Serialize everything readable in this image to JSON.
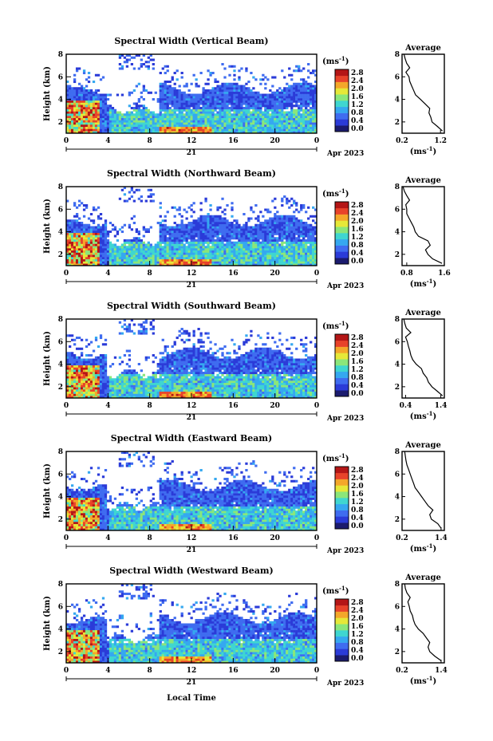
{
  "figure": {
    "xlabel": "Local Time",
    "date_label": "Apr 2023",
    "day_label": "21",
    "colorbar_unit": "(ms",
    "unit_exp": "-1",
    "colorbar_ticks": [
      "0.0",
      "0.4",
      "0.8",
      "1.2",
      "1.6",
      "2.0",
      "2.4",
      "2.8"
    ],
    "colors": {
      "colormap": [
        "#1b1b6e",
        "#2b3bd8",
        "#3f6cf0",
        "#35a8f0",
        "#3fd6d0",
        "#8be67a",
        "#e6e838",
        "#f4a72a",
        "#e8432a",
        "#b41616"
      ]
    }
  },
  "chart_data": [
    {
      "type": "heatmap",
      "title": "Spectral Width (Vertical Beam)",
      "ylabel": "Height (km)",
      "xlim": [
        0,
        24
      ],
      "ylim": [
        1.0,
        8.0
      ],
      "xticks": [
        "0",
        "4",
        "8",
        "12",
        "16",
        "20",
        "0"
      ],
      "yticks": [
        "2",
        "4",
        "6",
        "8"
      ],
      "zlim": [
        0.0,
        2.8
      ],
      "profile": {
        "title": "Average",
        "xlabel": "(ms",
        "xticks": [
          "0.2",
          "1.2"
        ],
        "xlim": [
          0.2,
          1.3
        ],
        "heights": [
          1.2,
          1.6,
          2.0,
          2.4,
          2.8,
          3.2,
          3.6,
          4.0,
          4.4,
          4.8,
          5.2,
          5.6,
          6.0,
          6.4,
          6.8,
          7.2,
          7.6,
          8.0
        ],
        "values": [
          1.25,
          1.12,
          0.98,
          0.95,
          0.9,
          0.92,
          0.8,
          0.68,
          0.55,
          0.5,
          0.45,
          0.4,
          0.38,
          0.3,
          0.4,
          0.32,
          0.28,
          0.25
        ]
      }
    },
    {
      "type": "heatmap",
      "title": "Spectral Width (Northward Beam)",
      "ylabel": "Height (km)",
      "xlim": [
        0,
        24
      ],
      "ylim": [
        1.0,
        8.0
      ],
      "xticks": [
        "0",
        "4",
        "8",
        "12",
        "16",
        "20",
        "0"
      ],
      "yticks": [
        "2",
        "4",
        "6",
        "8"
      ],
      "zlim": [
        0.0,
        2.8
      ],
      "profile": {
        "title": "Average",
        "xlabel": "(ms",
        "xticks": [
          "0.8",
          "1.6"
        ],
        "xlim": [
          0.7,
          1.6
        ],
        "heights": [
          1.2,
          1.6,
          2.0,
          2.4,
          2.8,
          3.2,
          3.6,
          4.0,
          4.4,
          4.8,
          5.2,
          5.6,
          6.0,
          6.4,
          6.8,
          7.2,
          7.6,
          8.0
        ],
        "values": [
          1.55,
          1.35,
          1.25,
          1.2,
          1.3,
          1.25,
          1.05,
          0.98,
          0.95,
          0.9,
          0.85,
          0.8,
          0.8,
          0.78,
          0.86,
          0.8,
          0.75,
          0.72
        ]
      }
    },
    {
      "type": "heatmap",
      "title": "Spectral Width (Southward Beam)",
      "ylabel": "Height (km)",
      "xlim": [
        0,
        24
      ],
      "ylim": [
        1.0,
        8.0
      ],
      "xticks": [
        "0",
        "4",
        "8",
        "12",
        "16",
        "20",
        "0"
      ],
      "yticks": [
        "2",
        "4",
        "6",
        "8"
      ],
      "zlim": [
        0.0,
        2.8
      ],
      "profile": {
        "title": "Average",
        "xlabel": "(ms",
        "xticks": [
          "0.4",
          "1.4"
        ],
        "xlim": [
          0.3,
          1.5
        ],
        "heights": [
          1.2,
          1.6,
          2.0,
          2.4,
          2.8,
          3.2,
          3.6,
          4.0,
          4.4,
          4.8,
          5.2,
          5.6,
          6.0,
          6.4,
          6.8,
          7.2,
          7.6,
          8.0
        ],
        "values": [
          1.45,
          1.3,
          1.15,
          1.05,
          1.0,
          0.9,
          0.85,
          0.7,
          0.6,
          0.55,
          0.52,
          0.48,
          0.45,
          0.4,
          0.55,
          0.42,
          0.38,
          0.35
        ]
      }
    },
    {
      "type": "heatmap",
      "title": "Spectral Width (Eastward Beam)",
      "ylabel": "Height (km)",
      "xlim": [
        0,
        24
      ],
      "ylim": [
        1.0,
        8.0
      ],
      "xticks": [
        "0",
        "4",
        "8",
        "12",
        "16",
        "20",
        "0"
      ],
      "yticks": [
        "2",
        "4",
        "6",
        "8"
      ],
      "zlim": [
        0.0,
        2.8
      ],
      "profile": {
        "title": "Average",
        "xlabel": "(ms",
        "xticks": [
          "0.2",
          "1.4"
        ],
        "xlim": [
          0.2,
          1.5
        ],
        "heights": [
          1.2,
          1.6,
          2.0,
          2.4,
          2.8,
          3.2,
          3.6,
          4.0,
          4.4,
          4.8,
          5.2,
          5.6,
          6.0,
          6.4,
          6.8,
          7.2,
          7.6,
          8.0
        ],
        "values": [
          1.4,
          1.3,
          1.1,
          1.05,
          1.15,
          1.0,
          0.9,
          0.8,
          0.7,
          0.6,
          0.55,
          0.5,
          0.45,
          0.4,
          0.35,
          0.32,
          0.3,
          0.28
        ]
      }
    },
    {
      "type": "heatmap",
      "title": "Spectral Width (Westward Beam)",
      "ylabel": "Height (km)",
      "xlim": [
        0,
        24
      ],
      "ylim": [
        1.0,
        8.0
      ],
      "xticks": [
        "0",
        "4",
        "8",
        "12",
        "16",
        "20",
        "0"
      ],
      "yticks": [
        "2",
        "4",
        "6",
        "8"
      ],
      "zlim": [
        0.0,
        2.8
      ],
      "profile": {
        "title": "Average",
        "xlabel": "(ms",
        "xticks": [
          "0.2",
          "1.4"
        ],
        "xlim": [
          0.2,
          1.5
        ],
        "heights": [
          1.2,
          1.6,
          2.0,
          2.4,
          2.8,
          3.2,
          3.6,
          4.0,
          4.4,
          4.8,
          5.2,
          5.6,
          6.0,
          6.4,
          6.8,
          7.2,
          7.6,
          8.0
        ],
        "values": [
          1.4,
          1.2,
          1.05,
          1.0,
          1.05,
          0.95,
          0.85,
          0.7,
          0.6,
          0.55,
          0.52,
          0.45,
          0.42,
          0.38,
          0.45,
          0.35,
          0.3,
          0.28
        ]
      }
    }
  ]
}
